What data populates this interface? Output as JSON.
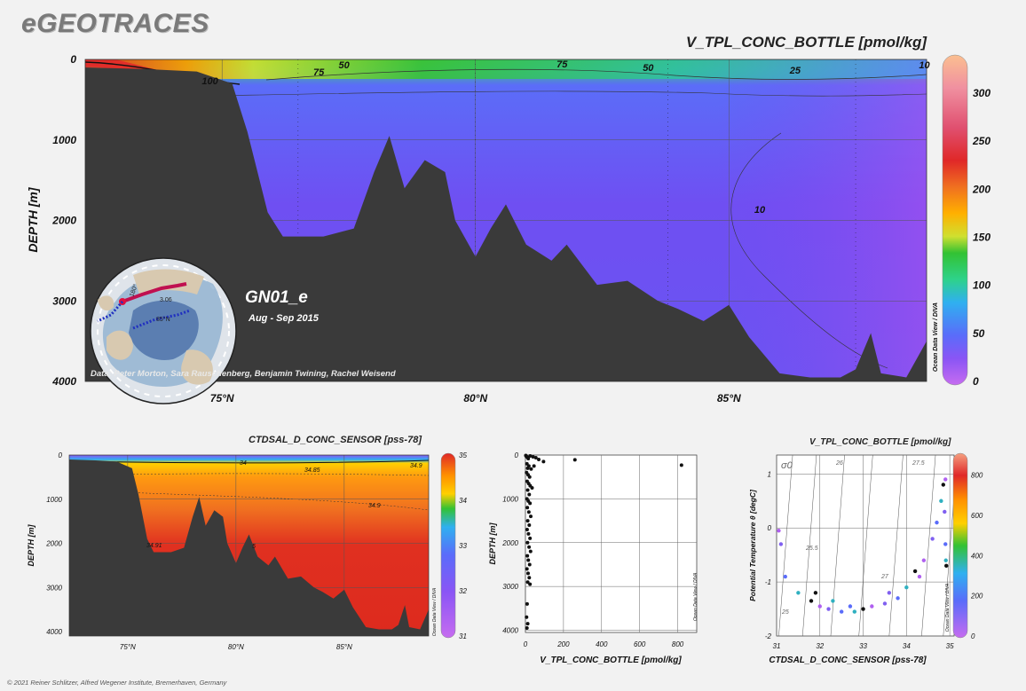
{
  "header": {
    "brand": "eGEOTRACES"
  },
  "main_section": {
    "title": "V_TPL_CONC_BOTTLE [pmol/kg]",
    "cruise": "GN01_e",
    "period": "Aug - Sep 2015",
    "credit": "Data: Peter Morton, Sara Rauschenberg, Benjamin Twining, Rachel Weisend",
    "software_label": "Ocean Data View / DIVA",
    "map_labels": [
      "3.06",
      "180°",
      "85°N"
    ]
  },
  "colors": {
    "background": "#f2f2f2",
    "seafloor": "#3a3a3a"
  },
  "footer": {
    "copyright": "© 2021 Reiner Schlitzer, Alfred Wegener Institute, Bremerhaven, Germany"
  },
  "chart_data": [
    {
      "type": "section",
      "title": "V_TPL_CONC_BOTTLE [pmol/kg]",
      "xlabel": "",
      "ylabel": "DEPTH [m]",
      "x_ticks": [
        "75°N",
        "80°N",
        "85°N"
      ],
      "x_tick_values": [
        75,
        80,
        85
      ],
      "y_ticks": [
        "0",
        "1000",
        "2000",
        "3000",
        "4000"
      ],
      "y_tick_values": [
        0,
        1000,
        2000,
        3000,
        4000
      ],
      "xlim": [
        72.3,
        88.9
      ],
      "ylim": [
        4000,
        0
      ],
      "colorbar": {
        "ticks": [
          "0",
          "50",
          "100",
          "150",
          "200",
          "250",
          "300"
        ],
        "values": [
          0,
          50,
          100,
          150,
          200,
          250,
          300
        ],
        "range": [
          0,
          335
        ]
      },
      "contour_labels": [
        "50",
        "75",
        "50",
        "25",
        "100",
        "75",
        "10",
        "10"
      ],
      "bathymetry": [
        [
          72.3,
          100
        ],
        [
          73.5,
          120
        ],
        [
          74.5,
          150
        ],
        [
          75.2,
          300
        ],
        [
          75.5,
          900
        ],
        [
          75.9,
          1900
        ],
        [
          76.2,
          2200
        ],
        [
          77,
          2200
        ],
        [
          77.6,
          2100
        ],
        [
          78,
          1400
        ],
        [
          78.3,
          950
        ],
        [
          78.6,
          1600
        ],
        [
          79,
          1250
        ],
        [
          79.4,
          1400
        ],
        [
          79.6,
          2000
        ],
        [
          80,
          2450
        ],
        [
          80.3,
          2100
        ],
        [
          80.6,
          1800
        ],
        [
          81,
          2300
        ],
        [
          81.5,
          2500
        ],
        [
          81.8,
          2300
        ],
        [
          82.4,
          2800
        ],
        [
          83,
          2750
        ],
        [
          83.6,
          3000
        ],
        [
          84,
          3100
        ],
        [
          84.5,
          3250
        ],
        [
          85,
          3050
        ],
        [
          85.4,
          3450
        ],
        [
          86,
          3900
        ],
        [
          86.6,
          3950
        ],
        [
          87.2,
          3950
        ],
        [
          87.5,
          3850
        ],
        [
          87.8,
          3400
        ],
        [
          88,
          3900
        ],
        [
          88.5,
          3950
        ],
        [
          88.9,
          3500
        ]
      ]
    },
    {
      "type": "section",
      "title": "CTDSAL_D_CONC_SENSOR [pss-78]",
      "xlabel": "",
      "ylabel": "DEPTH [m]",
      "x_ticks": [
        "75°N",
        "80°N",
        "85°N"
      ],
      "x_tick_values": [
        75,
        80,
        85
      ],
      "y_ticks": [
        "0",
        "1000",
        "2000",
        "3000",
        "4000"
      ],
      "y_tick_values": [
        0,
        1000,
        2000,
        3000,
        4000
      ],
      "xlim": [
        72.3,
        88.9
      ],
      "ylim": [
        4100,
        0
      ],
      "colorbar": {
        "ticks": [
          "31",
          "32",
          "33",
          "34",
          "35"
        ],
        "values": [
          31,
          32,
          33,
          34,
          35
        ],
        "range": [
          31,
          35
        ]
      },
      "contour_labels": [
        "34",
        "34.85",
        "34.9",
        "34.9",
        "34.91",
        "5"
      ]
    },
    {
      "type": "scatter",
      "xlabel": "V_TPL_CONC_BOTTLE [pmol/kg]",
      "ylabel": "DEPTH [m]",
      "x_ticks": [
        "0",
        "200",
        "400",
        "600",
        "800"
      ],
      "x_tick_values": [
        0,
        200,
        400,
        600,
        800
      ],
      "y_ticks": [
        "0",
        "1000",
        "2000",
        "3000",
        "4000"
      ],
      "y_tick_values": [
        0,
        1000,
        2000,
        3000,
        4000
      ],
      "xlim": [
        0,
        900
      ],
      "ylim": [
        4050,
        0
      ],
      "points": [
        [
          2,
          10
        ],
        [
          5,
          30
        ],
        [
          10,
          50
        ],
        [
          15,
          80
        ],
        [
          25,
          20
        ],
        [
          40,
          40
        ],
        [
          55,
          60
        ],
        [
          70,
          100
        ],
        [
          95,
          150
        ],
        [
          260,
          110
        ],
        [
          820,
          230
        ],
        [
          8,
          200
        ],
        [
          18,
          250
        ],
        [
          12,
          300
        ],
        [
          30,
          320
        ],
        [
          45,
          250
        ],
        [
          6,
          400
        ],
        [
          14,
          450
        ],
        [
          22,
          500
        ],
        [
          9,
          600
        ],
        [
          17,
          650
        ],
        [
          25,
          700
        ],
        [
          35,
          750
        ],
        [
          12,
          800
        ],
        [
          20,
          900
        ],
        [
          8,
          1000
        ],
        [
          15,
          1050
        ],
        [
          24,
          1100
        ],
        [
          10,
          1200
        ],
        [
          18,
          1300
        ],
        [
          28,
          1400
        ],
        [
          12,
          1500
        ],
        [
          20,
          1600
        ],
        [
          9,
          1700
        ],
        [
          16,
          1800
        ],
        [
          24,
          1900
        ],
        [
          11,
          2000
        ],
        [
          19,
          2100
        ],
        [
          27,
          2200
        ],
        [
          10,
          2300
        ],
        [
          15,
          2400
        ],
        [
          22,
          2500
        ],
        [
          8,
          2600
        ],
        [
          14,
          2700
        ],
        [
          20,
          2800
        ],
        [
          12,
          2900
        ],
        [
          24,
          2950
        ],
        [
          9,
          3400
        ],
        [
          6,
          3700
        ],
        [
          12,
          3850
        ],
        [
          8,
          3950
        ]
      ]
    },
    {
      "type": "scatter",
      "title": "V_TPL_CONC_BOTTLE [pmol/kg]",
      "xlabel": "CTDSAL_D_CONC_SENSOR [pss-78]",
      "ylabel": "Potential Temperature θ [degC]",
      "x_ticks": [
        "31",
        "32",
        "33",
        "34",
        "35"
      ],
      "x_tick_values": [
        31,
        32,
        33,
        34,
        35
      ],
      "y_ticks": [
        "-2",
        "-1",
        "0",
        "1"
      ],
      "y_tick_values": [
        -2,
        -1,
        0,
        1
      ],
      "xlim": [
        31,
        35.1
      ],
      "ylim": [
        -2,
        1.35
      ],
      "isopycnal_labels": [
        "σ0",
        "25",
        "25.5",
        "26",
        "27",
        "27.5"
      ],
      "colorbar": {
        "ticks": [
          "0",
          "200",
          "400",
          "600",
          "800"
        ],
        "values": [
          0,
          200,
          400,
          600,
          800
        ],
        "range": [
          0,
          900
        ]
      },
      "points": [
        [
          31.05,
          -0.05
        ],
        [
          31.1,
          -0.3
        ],
        [
          31.2,
          -0.9
        ],
        [
          31.5,
          -1.2
        ],
        [
          31.8,
          -1.35
        ],
        [
          32.0,
          -1.45
        ],
        [
          32.2,
          -1.5
        ],
        [
          32.5,
          -1.55
        ],
        [
          32.8,
          -1.55
        ],
        [
          33.0,
          -1.5
        ],
        [
          33.2,
          -1.45
        ],
        [
          33.5,
          -1.4
        ],
        [
          33.8,
          -1.3
        ],
        [
          34.0,
          -1.1
        ],
        [
          34.2,
          -0.8
        ],
        [
          34.4,
          -0.6
        ],
        [
          34.6,
          -0.2
        ],
        [
          34.7,
          0.1
        ],
        [
          34.8,
          0.5
        ],
        [
          34.85,
          0.8
        ],
        [
          34.9,
          0.9
        ],
        [
          34.88,
          0.3
        ],
        [
          34.9,
          -0.3
        ],
        [
          34.91,
          -0.6
        ],
        [
          34.92,
          -0.7
        ],
        [
          34.3,
          -0.9
        ],
        [
          33.6,
          -1.2
        ],
        [
          32.7,
          -1.45
        ],
        [
          32.3,
          -1.35
        ],
        [
          31.9,
          -1.2
        ]
      ]
    }
  ]
}
